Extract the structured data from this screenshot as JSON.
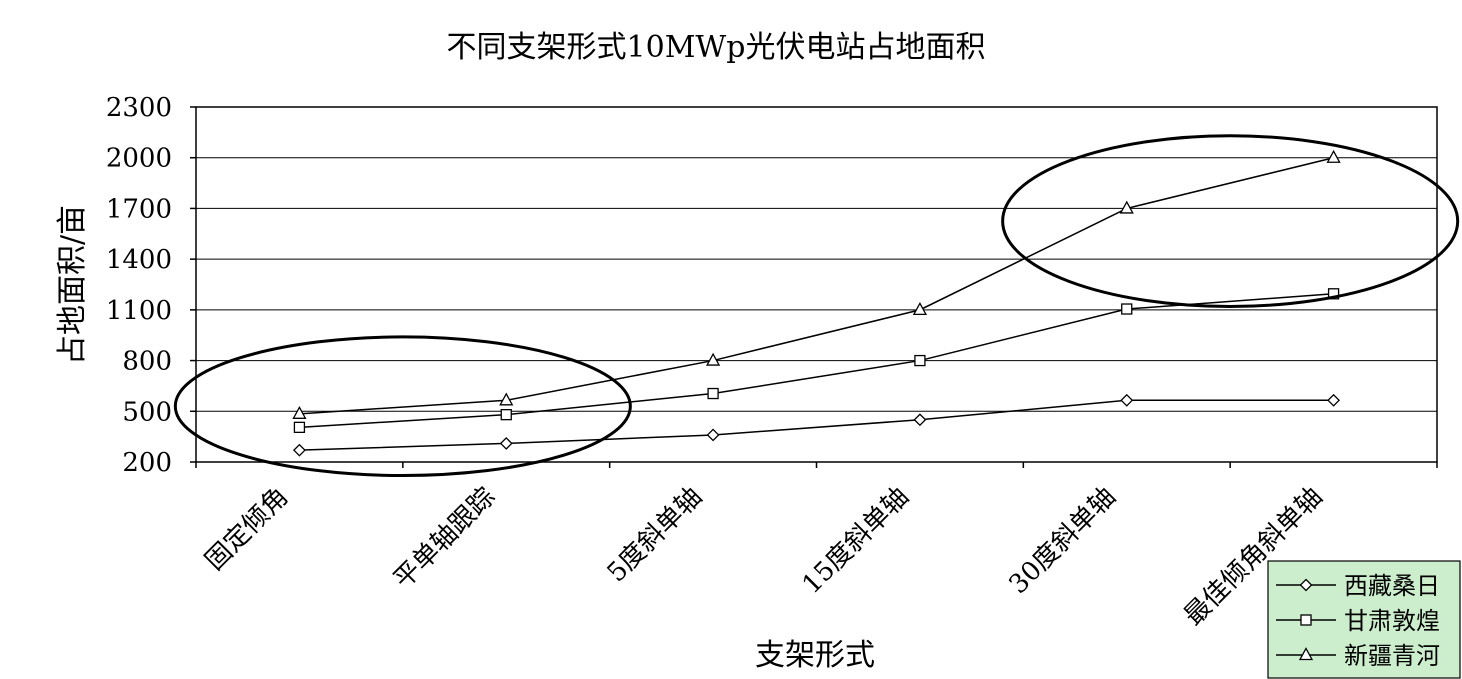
{
  "chart_data": {
    "type": "line",
    "title": "不同支架形式10MWp光伏电站占地面积",
    "xlabel": "支架形式",
    "ylabel": "占地面积/亩",
    "categories": [
      "固定倾角",
      "平单轴跟踪",
      "5度斜单轴",
      "15度斜单轴",
      "30度斜单轴",
      "最佳倾角斜单轴"
    ],
    "ylim": [
      200,
      2300
    ],
    "yticks": [
      200,
      500,
      800,
      1100,
      1400,
      1700,
      2000,
      2300
    ],
    "grid": true,
    "legend_position": "bottom-right",
    "legend_background": "#cceecc",
    "series": [
      {
        "name": "西藏桑日",
        "marker": "diamond",
        "values": [
          270,
          310,
          360,
          450,
          565,
          565
        ]
      },
      {
        "name": "甘肃敦煌",
        "marker": "square",
        "values": [
          405,
          480,
          605,
          800,
          1105,
          1195
        ]
      },
      {
        "name": "新疆青河",
        "marker": "triangle",
        "values": [
          485,
          565,
          800,
          1100,
          1700,
          2000
        ]
      }
    ],
    "annotations": [
      {
        "shape": "ellipse",
        "around_categories": [
          "固定倾角",
          "平单轴跟踪"
        ],
        "y_range": [
          120,
          940
        ]
      },
      {
        "shape": "ellipse",
        "around_categories": [
          "30度斜单轴",
          "最佳倾角斜单轴"
        ],
        "y_range": [
          1120,
          2130
        ]
      }
    ]
  }
}
